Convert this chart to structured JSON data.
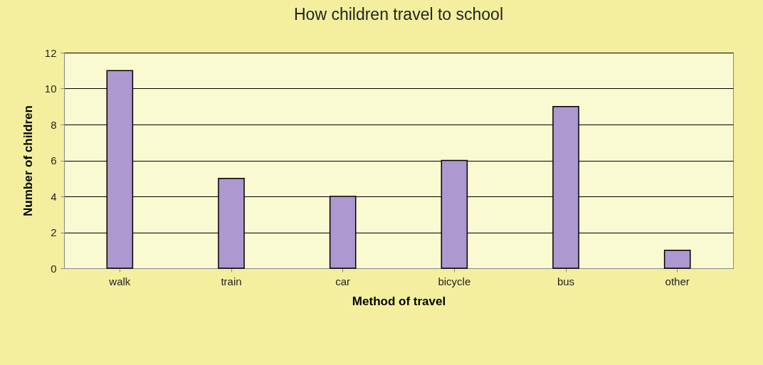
{
  "chart_data": {
    "type": "bar",
    "title": "How children travel to school",
    "xlabel": "Method of travel",
    "ylabel": "Number of children",
    "categories": [
      "walk",
      "train",
      "car",
      "bicycle",
      "bus",
      "other"
    ],
    "values": [
      11,
      5,
      4,
      6,
      9,
      1
    ],
    "color": "#ad98cf",
    "ylim": [
      0,
      12
    ],
    "yticks": [
      0,
      2,
      4,
      6,
      8,
      10,
      12
    ],
    "grid": "y"
  }
}
